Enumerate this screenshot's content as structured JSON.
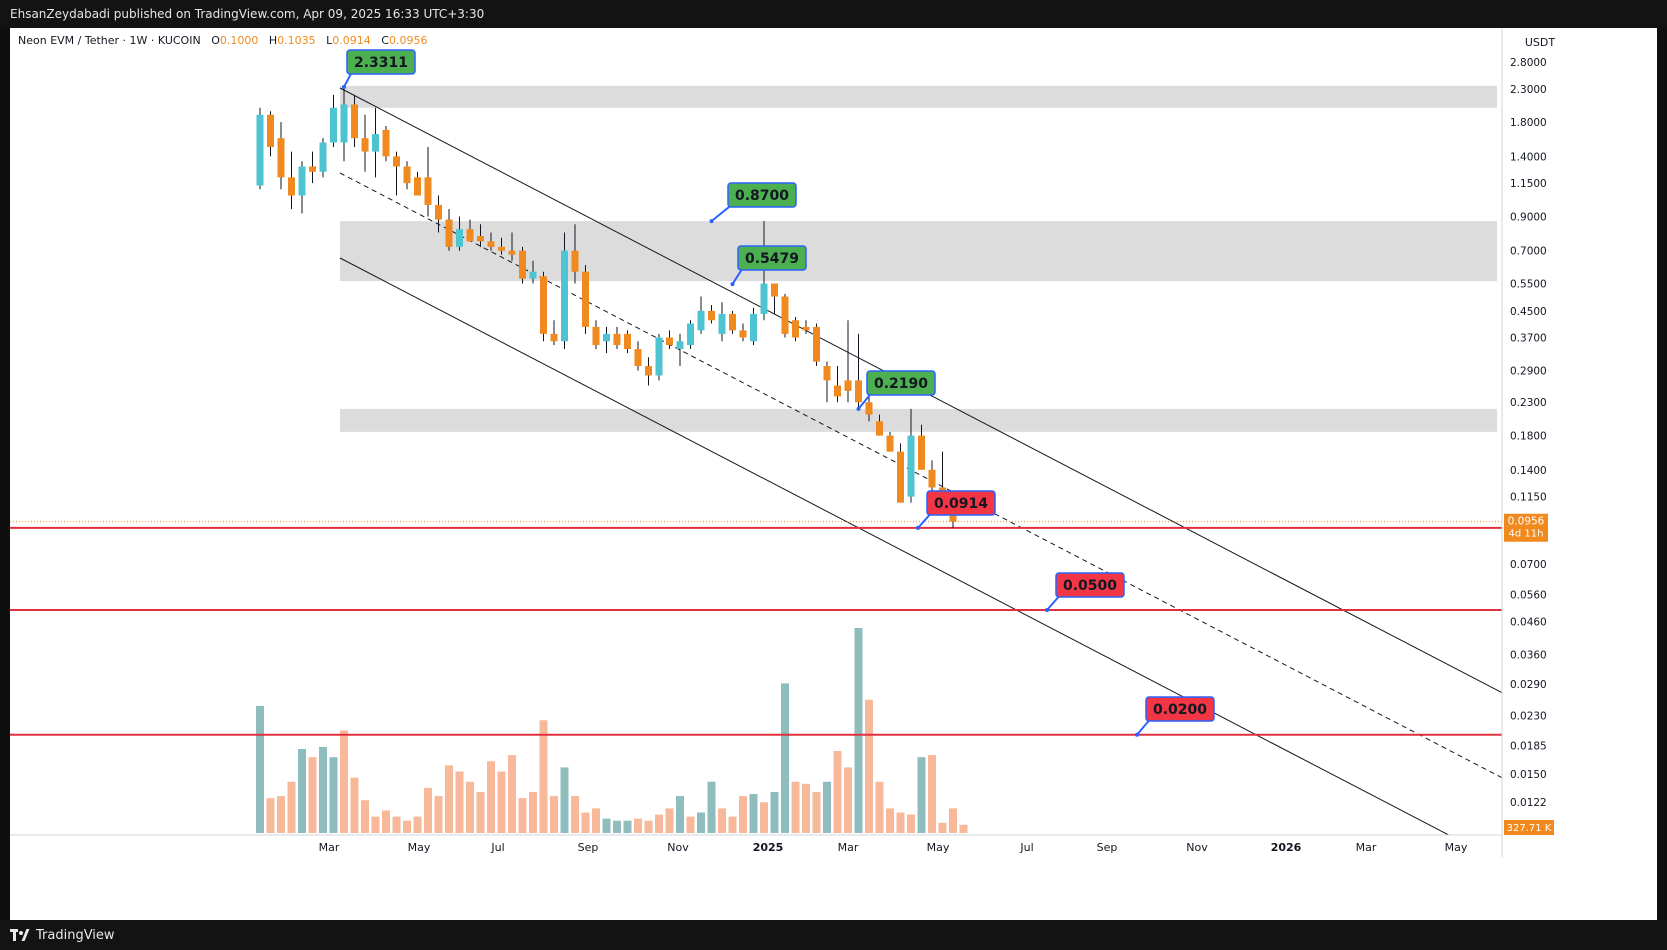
{
  "header": {
    "published": "EhsanZeydabadi published on TradingView.com, Apr 09, 2025 16:33 UTC+3:30"
  },
  "footer": {
    "brand": "TradingView"
  },
  "legend": {
    "symbol": "Neon EVM / Tether · 1W · KUCOIN",
    "open_label": "O",
    "open": "0.1000",
    "high_label": "H",
    "high": "0.1035",
    "low_label": "L",
    "low": "0.0914",
    "close_label": "C",
    "close": "0.0956"
  },
  "colors": {
    "up": "#4ec3d1",
    "down": "#f0891e",
    "vol_up": "#8fbdbd",
    "vol_down": "#f8b89a",
    "level_line": "#e0303e",
    "label_green": "#4caf50",
    "label_red": "#f23645",
    "zone": "#dcdcdc"
  },
  "chart_data": {
    "type": "candlestick",
    "title": "Neon EVM / Tether · 1W · KUCOIN",
    "y_axis": {
      "unit": "USDT",
      "scale": "log",
      "ticks": [
        "2.8000",
        "2.3000",
        "1.8000",
        "1.4000",
        "1.1500",
        "0.9000",
        "0.7000",
        "0.5500",
        "0.4500",
        "0.3700",
        "0.2900",
        "0.2300",
        "0.1800",
        "0.1400",
        "0.1150",
        "0.0700",
        "0.0560",
        "0.0460",
        "0.0360",
        "0.0290",
        "0.0230",
        "0.0185",
        "0.0150",
        "0.0122"
      ],
      "last_price": "0.0956",
      "countdown": "4d 11h",
      "volume_label": "327.71 K"
    },
    "x_axis": {
      "ticks": [
        "Mar",
        "May",
        "Jul",
        "Sep",
        "Nov",
        "2025",
        "Mar",
        "May",
        "Jul",
        "Sep",
        "Nov",
        "2026",
        "Mar",
        "May"
      ]
    },
    "candles": [
      {
        "o": 1.13,
        "h": 2.0,
        "l": 1.1,
        "c": 1.9
      },
      {
        "o": 1.9,
        "h": 1.95,
        "l": 1.4,
        "c": 1.5
      },
      {
        "o": 1.6,
        "h": 1.8,
        "l": 1.1,
        "c": 1.2
      },
      {
        "o": 1.2,
        "h": 1.45,
        "l": 0.95,
        "c": 1.05
      },
      {
        "o": 1.05,
        "h": 1.35,
        "l": 0.92,
        "c": 1.3
      },
      {
        "o": 1.3,
        "h": 1.45,
        "l": 1.15,
        "c": 1.25
      },
      {
        "o": 1.25,
        "h": 1.6,
        "l": 1.2,
        "c": 1.55
      },
      {
        "o": 1.55,
        "h": 2.2,
        "l": 1.5,
        "c": 2.0
      },
      {
        "o": 1.55,
        "h": 2.3311,
        "l": 1.35,
        "c": 2.05
      },
      {
        "o": 2.05,
        "h": 2.2,
        "l": 1.5,
        "c": 1.6
      },
      {
        "o": 1.6,
        "h": 1.9,
        "l": 1.25,
        "c": 1.45
      },
      {
        "o": 1.45,
        "h": 2.0,
        "l": 1.2,
        "c": 1.65
      },
      {
        "o": 1.7,
        "h": 1.75,
        "l": 1.35,
        "c": 1.4
      },
      {
        "o": 1.4,
        "h": 1.45,
        "l": 1.05,
        "c": 1.3
      },
      {
        "o": 1.3,
        "h": 1.35,
        "l": 1.1,
        "c": 1.15
      },
      {
        "o": 1.2,
        "h": 1.25,
        "l": 1.05,
        "c": 1.05
      },
      {
        "o": 1.2,
        "h": 1.5,
        "l": 0.9,
        "c": 0.98
      },
      {
        "o": 0.98,
        "h": 1.05,
        "l": 0.8,
        "c": 0.88
      },
      {
        "o": 0.88,
        "h": 0.95,
        "l": 0.7,
        "c": 0.72
      },
      {
        "o": 0.72,
        "h": 0.9,
        "l": 0.7,
        "c": 0.82
      },
      {
        "o": 0.82,
        "h": 0.88,
        "l": 0.75,
        "c": 0.75
      },
      {
        "o": 0.78,
        "h": 0.85,
        "l": 0.72,
        "c": 0.75
      },
      {
        "o": 0.75,
        "h": 0.8,
        "l": 0.7,
        "c": 0.72
      },
      {
        "o": 0.72,
        "h": 0.77,
        "l": 0.68,
        "c": 0.7
      },
      {
        "o": 0.7,
        "h": 0.8,
        "l": 0.65,
        "c": 0.68
      },
      {
        "o": 0.7,
        "h": 0.72,
        "l": 0.55,
        "c": 0.57
      },
      {
        "o": 0.57,
        "h": 0.65,
        "l": 0.55,
        "c": 0.6
      },
      {
        "o": 0.58,
        "h": 0.6,
        "l": 0.36,
        "c": 0.38
      },
      {
        "o": 0.38,
        "h": 0.42,
        "l": 0.35,
        "c": 0.36
      },
      {
        "o": 0.36,
        "h": 0.8,
        "l": 0.34,
        "c": 0.7
      },
      {
        "o": 0.7,
        "h": 0.85,
        "l": 0.55,
        "c": 0.6
      },
      {
        "o": 0.6,
        "h": 0.63,
        "l": 0.38,
        "c": 0.4
      },
      {
        "o": 0.4,
        "h": 0.42,
        "l": 0.34,
        "c": 0.35
      },
      {
        "o": 0.36,
        "h": 0.4,
        "l": 0.33,
        "c": 0.38
      },
      {
        "o": 0.38,
        "h": 0.4,
        "l": 0.34,
        "c": 0.35
      },
      {
        "o": 0.38,
        "h": 0.39,
        "l": 0.33,
        "c": 0.34
      },
      {
        "o": 0.34,
        "h": 0.36,
        "l": 0.29,
        "c": 0.3
      },
      {
        "o": 0.3,
        "h": 0.32,
        "l": 0.26,
        "c": 0.28
      },
      {
        "o": 0.28,
        "h": 0.38,
        "l": 0.27,
        "c": 0.37
      },
      {
        "o": 0.37,
        "h": 0.39,
        "l": 0.34,
        "c": 0.35
      },
      {
        "o": 0.34,
        "h": 0.38,
        "l": 0.3,
        "c": 0.36
      },
      {
        "o": 0.35,
        "h": 0.42,
        "l": 0.34,
        "c": 0.41
      },
      {
        "o": 0.39,
        "h": 0.5,
        "l": 0.38,
        "c": 0.45
      },
      {
        "o": 0.45,
        "h": 0.47,
        "l": 0.41,
        "c": 0.42
      },
      {
        "o": 0.38,
        "h": 0.48,
        "l": 0.36,
        "c": 0.44
      },
      {
        "o": 0.44,
        "h": 0.45,
        "l": 0.38,
        "c": 0.39
      },
      {
        "o": 0.39,
        "h": 0.41,
        "l": 0.36,
        "c": 0.37
      },
      {
        "o": 0.36,
        "h": 0.46,
        "l": 0.35,
        "c": 0.44
      },
      {
        "o": 0.44,
        "h": 0.87,
        "l": 0.42,
        "c": 0.55
      },
      {
        "o": 0.55,
        "h": 0.5479,
        "l": 0.44,
        "c": 0.5
      },
      {
        "o": 0.5,
        "h": 0.51,
        "l": 0.37,
        "c": 0.38
      },
      {
        "o": 0.42,
        "h": 0.43,
        "l": 0.36,
        "c": 0.37
      },
      {
        "o": 0.4,
        "h": 0.42,
        "l": 0.38,
        "c": 0.39
      },
      {
        "o": 0.4,
        "h": 0.41,
        "l": 0.3,
        "c": 0.31
      },
      {
        "o": 0.3,
        "h": 0.31,
        "l": 0.23,
        "c": 0.27
      },
      {
        "o": 0.26,
        "h": 0.3,
        "l": 0.23,
        "c": 0.24
      },
      {
        "o": 0.27,
        "h": 0.42,
        "l": 0.23,
        "c": 0.25
      },
      {
        "o": 0.27,
        "h": 0.38,
        "l": 0.22,
        "c": 0.23
      },
      {
        "o": 0.23,
        "h": 0.24,
        "l": 0.2,
        "c": 0.21
      },
      {
        "o": 0.2,
        "h": 0.21,
        "l": 0.18,
        "c": 0.18
      },
      {
        "o": 0.18,
        "h": 0.185,
        "l": 0.16,
        "c": 0.16
      },
      {
        "o": 0.16,
        "h": 0.17,
        "l": 0.11,
        "c": 0.11
      },
      {
        "o": 0.115,
        "h": 0.219,
        "l": 0.11,
        "c": 0.18
      },
      {
        "o": 0.18,
        "h": 0.195,
        "l": 0.14,
        "c": 0.14
      },
      {
        "o": 0.14,
        "h": 0.15,
        "l": 0.12,
        "c": 0.123
      },
      {
        "o": 0.123,
        "h": 0.16,
        "l": 0.1,
        "c": 0.1
      },
      {
        "o": 0.1,
        "h": 0.1035,
        "l": 0.0914,
        "c": 0.0956
      }
    ],
    "volume": [
      {
        "v": 0.62,
        "up": true
      },
      {
        "v": 0.17,
        "up": false
      },
      {
        "v": 0.18,
        "up": false
      },
      {
        "v": 0.25,
        "up": false
      },
      {
        "v": 0.41,
        "up": true
      },
      {
        "v": 0.37,
        "up": false
      },
      {
        "v": 0.42,
        "up": true
      },
      {
        "v": 0.37,
        "up": true
      },
      {
        "v": 0.5,
        "up": false
      },
      {
        "v": 0.27,
        "up": false
      },
      {
        "v": 0.16,
        "up": false
      },
      {
        "v": 0.08,
        "up": false
      },
      {
        "v": 0.11,
        "up": false
      },
      {
        "v": 0.08,
        "up": false
      },
      {
        "v": 0.06,
        "up": false
      },
      {
        "v": 0.08,
        "up": false
      },
      {
        "v": 0.22,
        "up": false
      },
      {
        "v": 0.18,
        "up": false
      },
      {
        "v": 0.33,
        "up": false
      },
      {
        "v": 0.3,
        "up": false
      },
      {
        "v": 0.25,
        "up": false
      },
      {
        "v": 0.2,
        "up": false
      },
      {
        "v": 0.35,
        "up": false
      },
      {
        "v": 0.3,
        "up": false
      },
      {
        "v": 0.38,
        "up": false
      },
      {
        "v": 0.17,
        "up": false
      },
      {
        "v": 0.2,
        "up": false
      },
      {
        "v": 0.55,
        "up": false
      },
      {
        "v": 0.18,
        "up": false
      },
      {
        "v": 0.32,
        "up": true
      },
      {
        "v": 0.18,
        "up": false
      },
      {
        "v": 0.1,
        "up": false
      },
      {
        "v": 0.12,
        "up": false
      },
      {
        "v": 0.07,
        "up": true
      },
      {
        "v": 0.06,
        "up": true
      },
      {
        "v": 0.06,
        "up": true
      },
      {
        "v": 0.07,
        "up": false
      },
      {
        "v": 0.06,
        "up": false
      },
      {
        "v": 0.09,
        "up": false
      },
      {
        "v": 0.12,
        "up": false
      },
      {
        "v": 0.18,
        "up": true
      },
      {
        "v": 0.08,
        "up": false
      },
      {
        "v": 0.1,
        "up": true
      },
      {
        "v": 0.25,
        "up": true
      },
      {
        "v": 0.12,
        "up": false
      },
      {
        "v": 0.08,
        "up": false
      },
      {
        "v": 0.18,
        "up": false
      },
      {
        "v": 0.19,
        "up": true
      },
      {
        "v": 0.15,
        "up": false
      },
      {
        "v": 0.2,
        "up": true
      },
      {
        "v": 0.73,
        "up": true
      },
      {
        "v": 0.25,
        "up": false
      },
      {
        "v": 0.24,
        "up": false
      },
      {
        "v": 0.2,
        "up": false
      },
      {
        "v": 0.25,
        "up": true
      },
      {
        "v": 0.4,
        "up": false
      },
      {
        "v": 0.32,
        "up": false
      },
      {
        "v": 1.0,
        "up": true
      },
      {
        "v": 0.65,
        "up": false
      },
      {
        "v": 0.25,
        "up": false
      },
      {
        "v": 0.12,
        "up": false
      },
      {
        "v": 0.1,
        "up": false
      },
      {
        "v": 0.09,
        "up": false
      },
      {
        "v": 0.37,
        "up": true
      },
      {
        "v": 0.38,
        "up": false
      },
      {
        "v": 0.05,
        "up": false
      },
      {
        "v": 0.12,
        "up": false
      },
      {
        "v": 0.04,
        "up": false
      }
    ],
    "horizontal_levels": [
      0.0914,
      0.05,
      0.02
    ],
    "price_labels": [
      {
        "text": "2.3311",
        "kind": "green"
      },
      {
        "text": "0.8700",
        "kind": "green"
      },
      {
        "text": "0.5479",
        "kind": "green"
      },
      {
        "text": "0.2190",
        "kind": "green"
      },
      {
        "text": "0.0914",
        "kind": "red"
      },
      {
        "text": "0.0500",
        "kind": "red"
      },
      {
        "text": "0.0200",
        "kind": "red"
      }
    ],
    "zones": [
      {
        "low": 2.0,
        "high": 2.35
      },
      {
        "low": 0.56,
        "high": 0.87
      },
      {
        "low": 0.185,
        "high": 0.219
      }
    ],
    "channel": "descending parallel channel with dashed midline"
  }
}
